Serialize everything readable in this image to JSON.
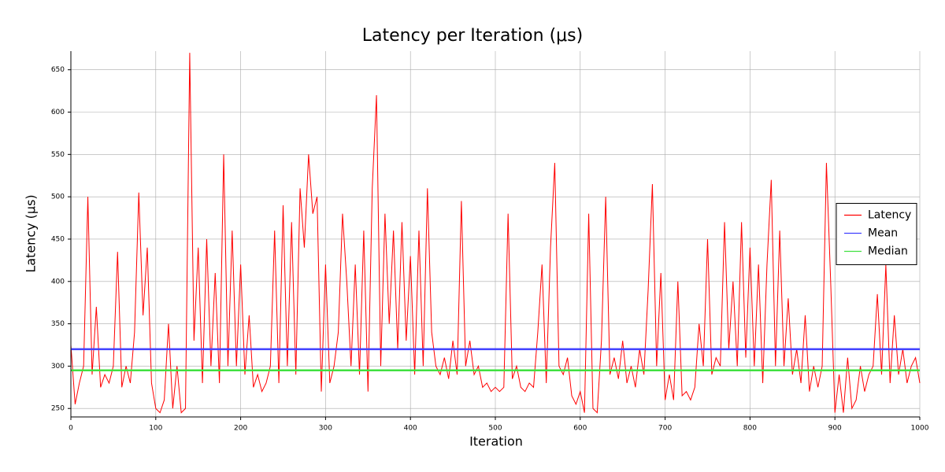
{
  "chart_data": {
    "type": "line",
    "title": "Latency per Iteration (μs)",
    "x_label": "Iteration",
    "y_label": "Latency (μs)",
    "xlim": [
      0,
      1000
    ],
    "xticks": [
      0,
      100,
      200,
      300,
      400,
      500,
      600,
      700,
      800,
      900,
      1000
    ],
    "ylim": [
      240,
      672
    ],
    "yticks": [
      250,
      300,
      350,
      400,
      450,
      500,
      550,
      600,
      650
    ],
    "grid": true,
    "legend": "right",
    "series": [
      {
        "name": "Latency",
        "color": "#ff0000",
        "x": [
          0,
          5,
          10,
          15,
          20,
          25,
          30,
          35,
          40,
          45,
          50,
          55,
          60,
          65,
          70,
          75,
          80,
          85,
          90,
          95,
          100,
          105,
          110,
          115,
          120,
          125,
          130,
          135,
          140,
          145,
          150,
          155,
          160,
          165,
          170,
          175,
          180,
          185,
          190,
          195,
          200,
          205,
          210,
          215,
          220,
          225,
          230,
          235,
          240,
          245,
          250,
          255,
          260,
          265,
          270,
          275,
          280,
          285,
          290,
          295,
          300,
          305,
          310,
          315,
          320,
          325,
          330,
          335,
          340,
          345,
          350,
          355,
          360,
          365,
          370,
          375,
          380,
          385,
          390,
          395,
          400,
          405,
          410,
          415,
          420,
          425,
          430,
          435,
          440,
          445,
          450,
          455,
          460,
          465,
          470,
          475,
          480,
          485,
          490,
          495,
          500,
          505,
          510,
          515,
          520,
          525,
          530,
          535,
          540,
          545,
          550,
          555,
          560,
          565,
          570,
          575,
          580,
          585,
          590,
          595,
          600,
          605,
          610,
          615,
          620,
          625,
          630,
          635,
          640,
          645,
          650,
          655,
          660,
          665,
          670,
          675,
          680,
          685,
          690,
          695,
          700,
          705,
          710,
          715,
          720,
          725,
          730,
          735,
          740,
          745,
          750,
          755,
          760,
          765,
          770,
          775,
          780,
          785,
          790,
          795,
          800,
          805,
          810,
          815,
          820,
          825,
          830,
          835,
          840,
          845,
          850,
          855,
          860,
          865,
          870,
          875,
          880,
          885,
          890,
          895,
          900,
          905,
          910,
          915,
          920,
          925,
          930,
          935,
          940,
          945,
          950,
          955,
          960,
          965,
          970,
          975,
          980,
          985,
          990,
          995,
          1000
        ],
        "values": [
          325,
          255,
          280,
          300,
          500,
          290,
          370,
          275,
          290,
          280,
          300,
          435,
          275,
          300,
          280,
          340,
          505,
          360,
          440,
          280,
          250,
          245,
          260,
          350,
          250,
          300,
          245,
          250,
          670,
          330,
          440,
          280,
          450,
          300,
          410,
          280,
          550,
          300,
          460,
          300,
          420,
          290,
          360,
          275,
          290,
          270,
          280,
          300,
          460,
          280,
          490,
          300,
          470,
          290,
          510,
          440,
          550,
          480,
          500,
          270,
          420,
          280,
          300,
          340,
          480,
          400,
          300,
          420,
          290,
          460,
          270,
          510,
          620,
          300,
          480,
          350,
          460,
          320,
          470,
          330,
          430,
          290,
          460,
          300,
          510,
          340,
          300,
          290,
          310,
          285,
          330,
          290,
          495,
          300,
          330,
          290,
          300,
          275,
          280,
          270,
          275,
          270,
          275,
          480,
          285,
          300,
          275,
          270,
          280,
          275,
          340,
          420,
          280,
          440,
          540,
          300,
          290,
          310,
          265,
          255,
          270,
          245,
          480,
          250,
          245,
          330,
          500,
          290,
          310,
          285,
          330,
          280,
          300,
          275,
          320,
          290,
          390,
          515,
          300,
          410,
          260,
          290,
          260,
          400,
          265,
          270,
          260,
          275,
          350,
          300,
          450,
          290,
          310,
          300,
          470,
          320,
          400,
          300,
          470,
          310,
          440,
          300,
          420,
          280,
          420,
          520,
          300,
          460,
          300,
          380,
          290,
          320,
          280,
          360,
          270,
          300,
          275,
          300,
          540,
          400,
          245,
          290,
          245,
          310,
          250,
          260,
          300,
          270,
          290,
          300,
          385,
          290,
          420,
          280,
          360,
          290,
          320,
          280,
          300,
          310,
          280
        ]
      },
      {
        "name": "Mean",
        "color": "#4040ff",
        "x": [
          0,
          1000
        ],
        "values": [
          320,
          320
        ]
      },
      {
        "name": "Median",
        "color": "#40e040",
        "x": [
          0,
          1000
        ],
        "values": [
          295,
          295
        ]
      }
    ]
  }
}
